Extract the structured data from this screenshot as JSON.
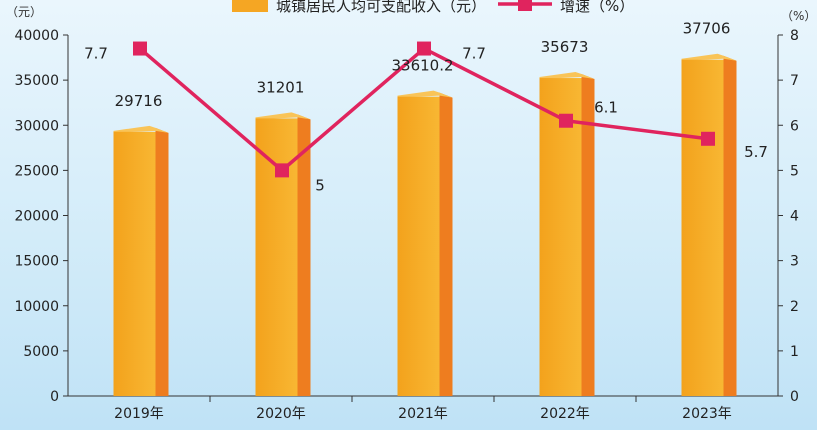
{
  "chart_data": {
    "type": "bar",
    "categories": [
      "2019年",
      "2020年",
      "2021年",
      "2022年",
      "2023年"
    ],
    "series": [
      {
        "name": "城镇居民人均可支配收入（元）",
        "type": "bar",
        "axis": "left",
        "values": [
          29716,
          31201,
          33610,
          35673,
          37706
        ],
        "color": "#f5a623",
        "side_color": "#ee7d1f"
      },
      {
        "name": "增速（%）",
        "type": "line",
        "axis": "right",
        "values": [
          7.7,
          5,
          7.7,
          6.1,
          5.7
        ],
        "labels": [
          "7.7",
          "5",
          "7.7",
          "6.1",
          "5.7"
        ],
        "color": "#e0245e"
      }
    ],
    "bar_labels": [
      "29716",
      "31201",
      "33610.2",
      "35673",
      "37706"
    ],
    "left_axis": {
      "unit": "（元）",
      "ylim": [
        0,
        40000
      ],
      "ticks": [
        "0",
        "5000",
        "10000",
        "15000",
        "20000",
        "25000",
        "30000",
        "35000",
        "40000"
      ]
    },
    "right_axis": {
      "unit": "（%）",
      "ylim": [
        0,
        8
      ],
      "ticks": [
        "0",
        "1",
        "2",
        "3",
        "4",
        "5",
        "6",
        "7",
        "8"
      ]
    },
    "legend_position": "top-center",
    "grid": false
  }
}
